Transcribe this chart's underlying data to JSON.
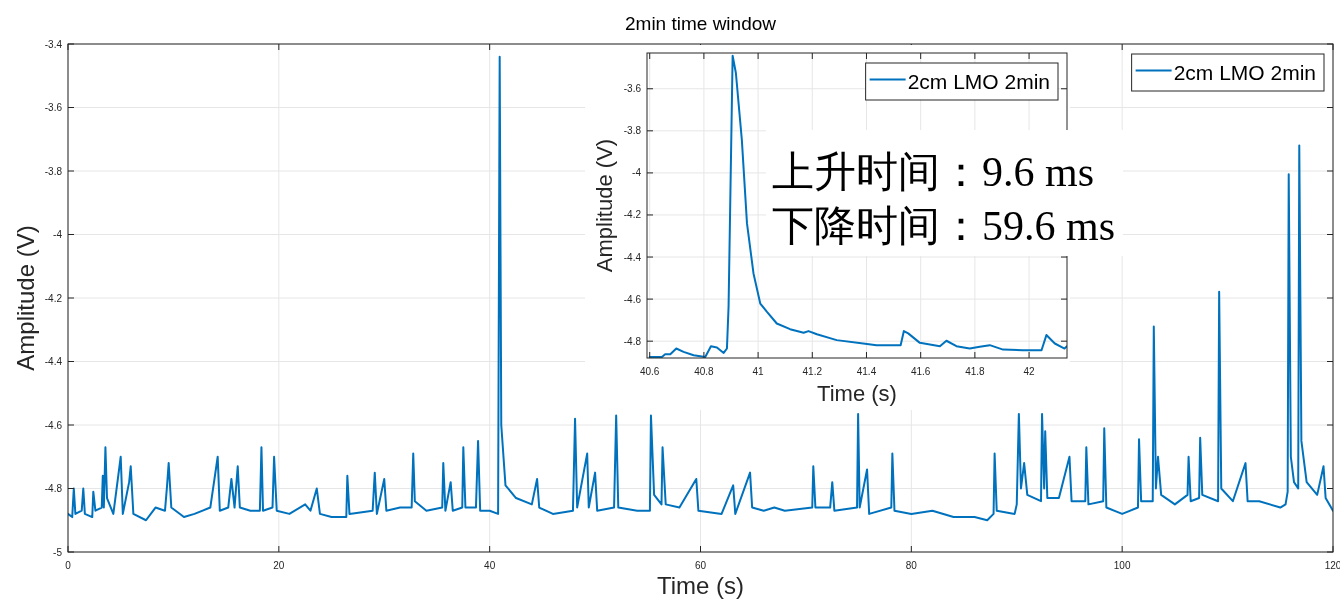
{
  "chart_data": [
    {
      "type": "line",
      "title": "2min time window",
      "xlabel": "Time (s)",
      "ylabel": "Amplitude (V)",
      "x": [
        0,
        0.4,
        0.55,
        0.7,
        1.3,
        1.45,
        1.6,
        2.3,
        2.4,
        2.6,
        3.2,
        3.3,
        3.4,
        3.55,
        3.7,
        4.3,
        5.0,
        5.2,
        5.8,
        5.95,
        6.2,
        7.4,
        8.3,
        9.2,
        9.4,
        9.55,
        9.8,
        11.0,
        12.0,
        13.5,
        14.2,
        14.4,
        15.2,
        15.5,
        15.8,
        16.1,
        16.3,
        17.3,
        18.2,
        18.35,
        18.5,
        19.4,
        19.55,
        19.8,
        21.0,
        22.5,
        23.0,
        23.6,
        23.9,
        25.0,
        26.4,
        26.5,
        26.7,
        28.9,
        29.1,
        29.3,
        30.0,
        30.2,
        31.5,
        32.6,
        32.75,
        32.9,
        34.0,
        35.5,
        35.6,
        35.8,
        36.3,
        36.5,
        37.4,
        37.5,
        37.7,
        38.7,
        38.9,
        39.1,
        40.0,
        40.8,
        40.95,
        41.1,
        41.5,
        42.5,
        44.0,
        44.5,
        44.7,
        46.0,
        47.9,
        48.1,
        48.3,
        49.25,
        49.4,
        50.0,
        50.2,
        51.8,
        52.0,
        52.2,
        54.0,
        55.2,
        55.3,
        55.6,
        56.3,
        56.4,
        56.7,
        58.0,
        59.6,
        59.8,
        62.0,
        63.1,
        63.3,
        64.7,
        64.9,
        66.0,
        67.0,
        68.0,
        70.6,
        70.7,
        70.9,
        72.3,
        72.5,
        72.7,
        74.85,
        74.95,
        75.1,
        75.8,
        76.0,
        78.1,
        78.2,
        78.4,
        80.0,
        82.0,
        84.0,
        86.0,
        87.2,
        87.8,
        87.9,
        88.1,
        89.8,
        90.0,
        90.2,
        90.4,
        90.7,
        91.0,
        92.3,
        92.4,
        92.6,
        92.7,
        92.9,
        94.0,
        95.0,
        95.2,
        96.5,
        96.6,
        96.8,
        98.2,
        98.3,
        98.5,
        100.0,
        101.5,
        101.6,
        101.8,
        102.9,
        103.0,
        103.2,
        103.4,
        103.7,
        105.0,
        106.2,
        106.3,
        106.5,
        107.3,
        107.4,
        107.6,
        109.1,
        109.2,
        109.4,
        110.5,
        111.7,
        111.9,
        113.0,
        115.0,
        115.5,
        115.7,
        115.8,
        116.0,
        116.3,
        116.7,
        116.8,
        117.0,
        117.5,
        118.5,
        119.1,
        119.3,
        120
      ],
      "series": [
        {
          "name": "2cm LMO 2min",
          "color": "#0072bd",
          "values": [
            -4.88,
            -4.89,
            -4.8,
            -4.88,
            -4.87,
            -4.8,
            -4.88,
            -4.89,
            -4.81,
            -4.87,
            -4.86,
            -4.76,
            -4.86,
            -4.67,
            -4.83,
            -4.88,
            -4.7,
            -4.88,
            -4.78,
            -4.73,
            -4.88,
            -4.9,
            -4.86,
            -4.87,
            -4.79,
            -4.72,
            -4.86,
            -4.89,
            -4.88,
            -4.86,
            -4.7,
            -4.87,
            -4.86,
            -4.77,
            -4.86,
            -4.73,
            -4.86,
            -4.87,
            -4.87,
            -4.67,
            -4.87,
            -4.86,
            -4.7,
            -4.87,
            -4.88,
            -4.85,
            -4.87,
            -4.8,
            -4.88,
            -4.89,
            -4.89,
            -4.76,
            -4.88,
            -4.87,
            -4.75,
            -4.88,
            -4.77,
            -4.87,
            -4.86,
            -4.86,
            -4.69,
            -4.84,
            -4.87,
            -4.86,
            -4.72,
            -4.87,
            -4.78,
            -4.87,
            -4.86,
            -4.67,
            -4.86,
            -4.86,
            -4.65,
            -4.87,
            -4.87,
            -4.88,
            -3.44,
            -4.6,
            -4.79,
            -4.83,
            -4.85,
            -4.77,
            -4.86,
            -4.88,
            -4.87,
            -4.58,
            -4.86,
            -4.69,
            -4.86,
            -4.75,
            -4.87,
            -4.86,
            -4.57,
            -4.86,
            -4.87,
            -4.87,
            -4.57,
            -4.82,
            -4.85,
            -4.67,
            -4.85,
            -4.86,
            -4.77,
            -4.87,
            -4.88,
            -4.79,
            -4.88,
            -4.75,
            -4.86,
            -4.87,
            -4.86,
            -4.87,
            -4.86,
            -4.73,
            -4.86,
            -4.86,
            -4.78,
            -4.87,
            -4.86,
            -4.565,
            -4.86,
            -4.74,
            -4.88,
            -4.86,
            -4.69,
            -4.87,
            -4.88,
            -4.87,
            -4.89,
            -4.89,
            -4.9,
            -4.88,
            -4.69,
            -4.87,
            -4.88,
            -4.85,
            -4.565,
            -4.8,
            -4.72,
            -4.82,
            -4.84,
            -4.565,
            -4.8,
            -4.62,
            -4.83,
            -4.83,
            -4.7,
            -4.84,
            -4.84,
            -4.67,
            -4.85,
            -4.84,
            -4.61,
            -4.86,
            -4.88,
            -4.86,
            -4.645,
            -4.84,
            -4.84,
            -4.29,
            -4.8,
            -4.7,
            -4.82,
            -4.85,
            -4.82,
            -4.7,
            -4.84,
            -4.83,
            -4.64,
            -4.82,
            -4.84,
            -4.18,
            -4.8,
            -4.84,
            -4.72,
            -4.84,
            -4.84,
            -4.86,
            -4.85,
            -4.81,
            -3.81,
            -4.7,
            -4.78,
            -4.8,
            -3.72,
            -4.65,
            -4.78,
            -4.82,
            -4.73,
            -4.83,
            -4.87
          ]
        }
      ],
      "xlim": [
        0,
        120
      ],
      "ylim": [
        -5,
        -3.4
      ],
      "xticks": [
        0,
        20,
        40,
        60,
        80,
        100,
        120
      ],
      "yticks": [
        -5,
        -4.8,
        -4.6,
        -4.4,
        -4.2,
        -4,
        -3.8,
        -3.6,
        -3.4
      ],
      "grid": true,
      "legend": "top right"
    },
    {
      "type": "line",
      "xlabel": "Time (s)",
      "ylabel": "Amplitude (V)",
      "x": [
        40.6,
        40.645,
        40.657,
        40.676,
        40.698,
        40.725,
        40.762,
        40.805,
        40.826,
        40.848,
        40.873,
        40.885,
        40.891,
        40.906,
        40.918,
        40.94,
        40.959,
        40.983,
        41.008,
        41.032,
        41.069,
        41.118,
        41.168,
        41.186,
        41.217,
        41.29,
        41.388,
        41.437,
        41.526,
        41.538,
        41.554,
        41.597,
        41.671,
        41.695,
        41.732,
        41.781,
        41.818,
        41.855,
        41.904,
        41.978,
        42.046,
        42.064,
        42.095,
        42.131,
        42.14
      ],
      "series": [
        {
          "name": "2cm LMO 2min",
          "color": "#0072bd",
          "values": [
            -4.875,
            -4.875,
            -4.862,
            -4.862,
            -4.835,
            -4.851,
            -4.867,
            -4.875,
            -4.824,
            -4.83,
            -4.856,
            -4.835,
            -4.637,
            -3.443,
            -3.525,
            -3.843,
            -4.24,
            -4.478,
            -4.621,
            -4.66,
            -4.716,
            -4.743,
            -4.76,
            -4.752,
            -4.767,
            -4.795,
            -4.811,
            -4.819,
            -4.819,
            -4.752,
            -4.763,
            -4.808,
            -4.824,
            -4.798,
            -4.824,
            -4.835,
            -4.827,
            -4.819,
            -4.84,
            -4.843,
            -4.843,
            -4.771,
            -4.811,
            -4.835,
            -4.824
          ]
        }
      ],
      "xlim": [
        40.59,
        42.14
      ],
      "ylim": [
        -4.88,
        -3.43
      ],
      "xticks": [
        40.6,
        40.8,
        41,
        41.2,
        41.4,
        41.6,
        41.8,
        42
      ],
      "yticks": [
        -4.8,
        -4.6,
        -4.4,
        -4.2,
        -4,
        -3.8,
        -3.6
      ],
      "grid": true,
      "legend": "top right",
      "annotations": [
        "上升时间：9.6 ms",
        "下降时间：59.6 ms"
      ]
    }
  ]
}
